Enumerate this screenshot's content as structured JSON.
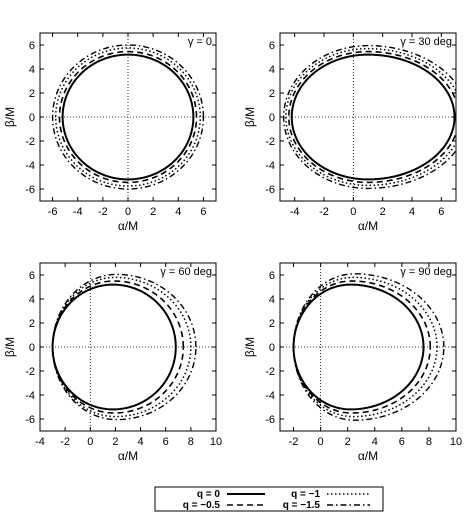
{
  "chart_data": [
    {
      "type": "line",
      "annotation": "γ = 0",
      "xlabel": "α/M",
      "ylabel": "β/M",
      "xlim": [
        -7,
        7
      ],
      "ylim": [
        -7,
        7
      ],
      "xticks": [
        -6,
        -4,
        -2,
        0,
        2,
        4,
        6
      ],
      "yticks": [
        -6,
        -4,
        -2,
        0,
        2,
        4,
        6
      ],
      "grid": false,
      "crosshair_at_origin": true,
      "series": [
        {
          "name": "q = 0",
          "center": [
            0,
            0
          ],
          "radii": [
            5.2,
            5.2,
            5.2,
            5.2
          ]
        },
        {
          "name": "q = −0.5",
          "center": [
            0,
            0
          ],
          "radii": [
            5.45,
            5.45,
            5.45,
            5.45
          ]
        },
        {
          "name": "q = −1",
          "center": [
            0,
            0
          ],
          "radii": [
            5.75,
            5.75,
            5.75,
            5.75
          ]
        },
        {
          "name": "q = −1.5",
          "center": [
            0,
            0
          ],
          "radii": [
            6.0,
            6.0,
            6.0,
            6.0
          ]
        }
      ]
    },
    {
      "type": "line",
      "annotation": "γ = 30 deg",
      "xlabel": "α/M",
      "ylabel": "β/M",
      "xlim": [
        -5,
        7
      ],
      "ylim": [
        -7,
        7
      ],
      "xticks": [
        -4,
        -2,
        0,
        2,
        4,
        6
      ],
      "yticks": [
        -6,
        -4,
        -2,
        0,
        2,
        4,
        6
      ],
      "grid": false,
      "crosshair_at_origin": true,
      "series": [
        {
          "name": "q = 0",
          "center": [
            1.0,
            0
          ],
          "radii": [
            5.9,
            5.2,
            5.2,
            5.2
          ]
        },
        {
          "name": "q = −0.5",
          "center": [
            1.0,
            0
          ],
          "radii": [
            6.2,
            5.4,
            5.45,
            5.45
          ]
        },
        {
          "name": "q = −1",
          "center": [
            1.0,
            0
          ],
          "radii": [
            6.5,
            5.6,
            5.7,
            5.7
          ]
        },
        {
          "name": "q = −1.5",
          "center": [
            1.0,
            0
          ],
          "radii": [
            6.8,
            5.75,
            5.95,
            5.95
          ]
        }
      ]
    },
    {
      "type": "line",
      "annotation": "γ = 60 deg",
      "xlabel": "α/M",
      "ylabel": "β/M",
      "xlim": [
        -4,
        10
      ],
      "ylim": [
        -7,
        7
      ],
      "xticks": [
        -4,
        -2,
        0,
        2,
        4,
        6,
        8,
        10
      ],
      "yticks": [
        -6,
        -4,
        -2,
        0,
        2,
        4,
        6
      ],
      "grid": false,
      "crosshair_at_origin": true,
      "series": [
        {
          "name": "q = 0",
          "center": [
            1.8,
            0
          ],
          "radii": [
            5.0,
            4.8,
            5.2,
            5.2
          ]
        },
        {
          "name": "q = −0.5",
          "center": [
            1.9,
            0
          ],
          "radii": [
            5.5,
            4.9,
            5.5,
            5.5
          ]
        },
        {
          "name": "q = −1",
          "center": [
            2.0,
            0
          ],
          "radii": [
            6.0,
            5.0,
            5.8,
            5.8
          ]
        },
        {
          "name": "q = −1.5",
          "center": [
            2.1,
            0
          ],
          "radii": [
            6.3,
            5.1,
            6.05,
            6.05
          ]
        }
      ]
    },
    {
      "type": "line",
      "annotation": "γ = 90 deg",
      "xlabel": "α/M",
      "ylabel": "β/M",
      "xlim": [
        -3,
        10
      ],
      "ylim": [
        -7,
        7
      ],
      "xticks": [
        -2,
        0,
        2,
        4,
        6,
        8,
        10
      ],
      "yticks": [
        -6,
        -4,
        -2,
        0,
        2,
        4,
        6
      ],
      "grid": false,
      "crosshair_at_origin": true,
      "series": [
        {
          "name": "q = 0",
          "center": [
            2.2,
            0
          ],
          "radii": [
            5.4,
            4.2,
            5.2,
            5.2
          ]
        },
        {
          "name": "q = −0.5",
          "center": [
            2.3,
            0
          ],
          "radii": [
            5.8,
            4.3,
            5.5,
            5.5
          ]
        },
        {
          "name": "q = −1",
          "center": [
            2.4,
            0
          ],
          "radii": [
            6.2,
            4.4,
            5.8,
            5.8
          ]
        },
        {
          "name": "q = −1.5",
          "center": [
            2.5,
            0
          ],
          "radii": [
            6.6,
            4.5,
            6.1,
            6.1
          ]
        }
      ]
    }
  ],
  "legend": {
    "placement": "bottom-center",
    "entries": [
      {
        "label": "q = 0",
        "style": "solid"
      },
      {
        "label": "q = −1",
        "style": "dotted"
      },
      {
        "label": "q = −0.5",
        "style": "dashed"
      },
      {
        "label": "q = −1.5",
        "style": "dashdot"
      }
    ]
  }
}
